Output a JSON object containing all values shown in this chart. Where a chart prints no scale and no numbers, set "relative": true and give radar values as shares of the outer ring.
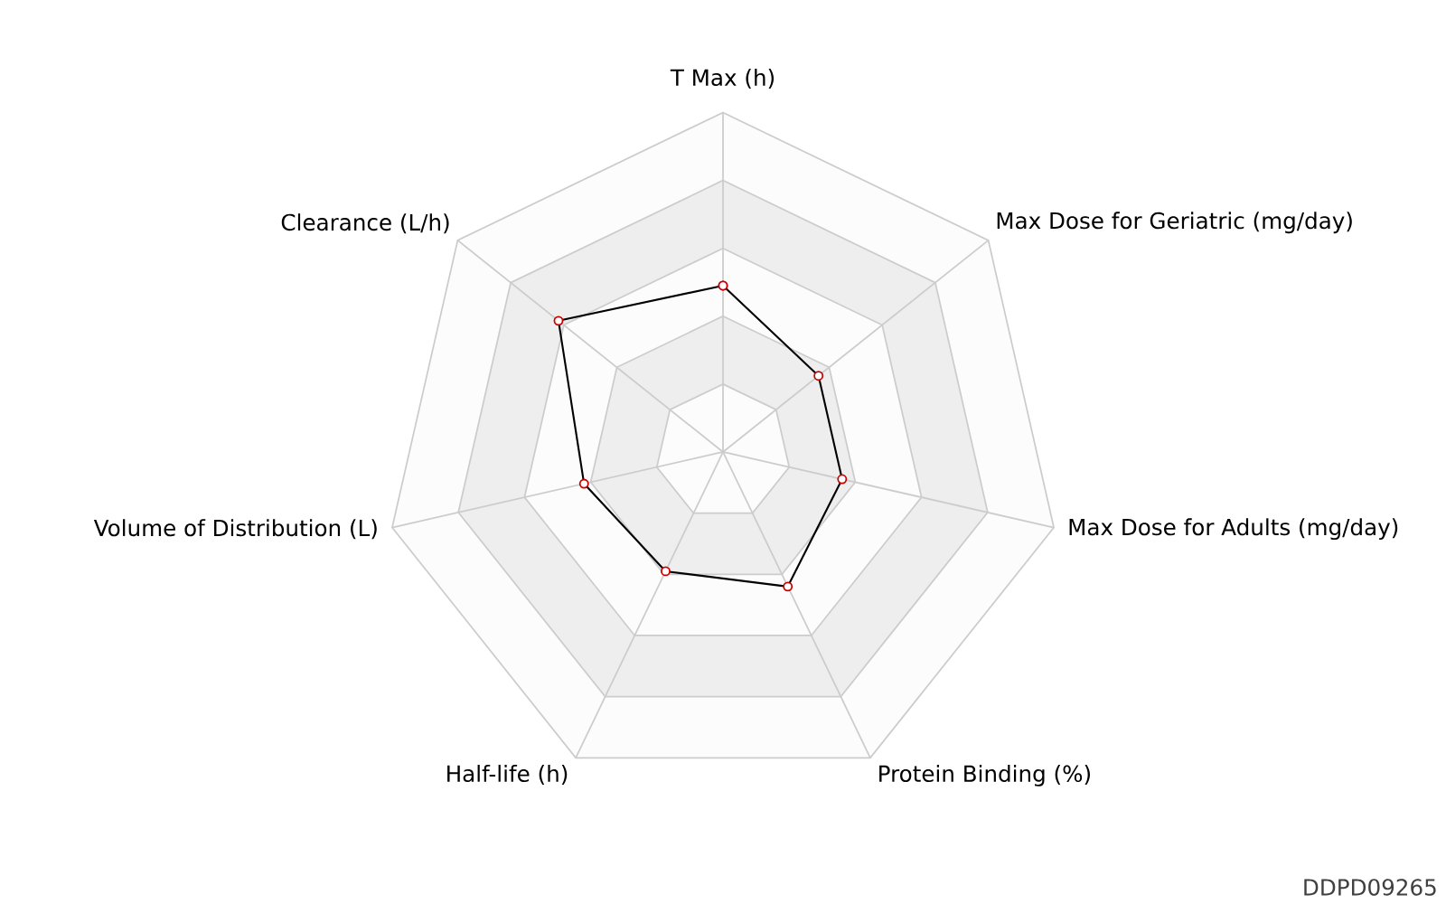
{
  "chart_data": {
    "type": "radar",
    "relative": true,
    "grid": true,
    "marker": "circle",
    "categories": [
      "T Max (h)",
      "Max Dose for Geriatric (mg/day)",
      "Max Dose for Adults (mg/day)",
      "Protein Binding (%)",
      "Half-life (h)",
      "Volume of Distribution (L)",
      "Clearance (L/h)"
    ],
    "series": [
      {
        "color": "#000000",
        "values": [
          0.49,
          0.36,
          0.36,
          0.44,
          0.39,
          0.42,
          0.62
        ]
      }
    ],
    "annotations": [
      "DDPD09265"
    ]
  }
}
